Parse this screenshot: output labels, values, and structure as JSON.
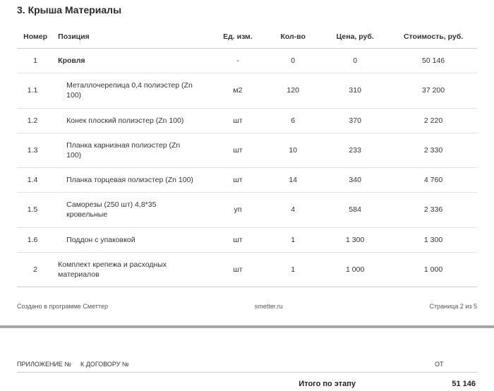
{
  "section_title": "3. Крыша Материалы",
  "columns": {
    "num": "Номер",
    "pos": "Позиция",
    "unit": "Ед. изм.",
    "qty": "Кол-во",
    "price": "Цена, руб.",
    "cost": "Стоимость, руб."
  },
  "rows": [
    {
      "num": "1",
      "pos": "Кровля",
      "unit": "-",
      "qty": "0",
      "price": "0",
      "cost": "50 146",
      "level": "parent",
      "bold": true
    },
    {
      "num": "1.1",
      "pos": "Металлочерепица 0,4 полиэстер (Zn 100)",
      "unit": "м2",
      "qty": "120",
      "price": "310",
      "cost": "37 200",
      "level": "sub"
    },
    {
      "num": "1.2",
      "pos": "Конек плоский полиэстер (Zn 100)",
      "unit": "шт",
      "qty": "6",
      "price": "370",
      "cost": "2 220",
      "level": "sub"
    },
    {
      "num": "1.3",
      "pos": "Планка карнизная полиэстер (Zn 100)",
      "unit": "шт",
      "qty": "10",
      "price": "233",
      "cost": "2 330",
      "level": "sub"
    },
    {
      "num": "1.4",
      "pos": "Планка торцевая полиэстер (Zn 100)",
      "unit": "шт",
      "qty": "14",
      "price": "340",
      "cost": "4 760",
      "level": "sub"
    },
    {
      "num": "1.5",
      "pos": "Саморезы (250 шт) 4,8*35 кровельные",
      "unit": "уп",
      "qty": "4",
      "price": "584",
      "cost": "2 336",
      "level": "sub"
    },
    {
      "num": "1.6",
      "pos": "Поддон с упаковкой",
      "unit": "шт",
      "qty": "1",
      "price": "1 300",
      "cost": "1 300",
      "level": "sub"
    },
    {
      "num": "2",
      "pos": "Комплект крепежа и расходных материалов",
      "unit": "шт",
      "qty": "1",
      "price": "1 000",
      "cost": "1 000",
      "level": "parent"
    }
  ],
  "footer": {
    "left": "Создано в программе Сметтер",
    "center": "smetter.ru",
    "right": "Страница 2 из 5"
  },
  "next_page": {
    "app_label": "ПРИЛОЖЕНИЕ №",
    "contract_label": "К ДОГОВОРУ №",
    "from_label": "ОТ"
  },
  "stage_total": {
    "label": "Итого по этапу",
    "value": "51 146"
  }
}
